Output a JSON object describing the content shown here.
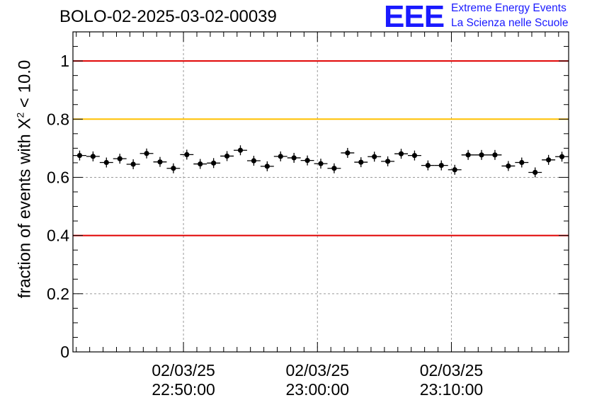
{
  "header": {
    "run_title": "BOLO-02-2025-03-02-00039",
    "logo_letters": "EEE",
    "logo_line1": "Extreme Energy Events",
    "logo_line2": "La Scienza nelle Scuole"
  },
  "colors": {
    "upper_limit": "#e00000",
    "lower_limit": "#e00000",
    "target": "#ffc000",
    "logo": "#1a1aff",
    "markers": "#000000"
  },
  "chart_data": {
    "type": "scatter",
    "ylabel": {
      "prefix": "fraction of events with ",
      "symbol": "X",
      "superscript": "2",
      "suffix": " < 10.0"
    },
    "ylim": [
      0,
      1.1
    ],
    "yticks": [
      0,
      0.2,
      0.4,
      0.6,
      0.8,
      1
    ],
    "ytick_labels": [
      "0",
      "0.2",
      "0.4",
      "0.6",
      "0.8",
      "1"
    ],
    "xlim": [
      0,
      37
    ],
    "xticks": [
      8.25,
      18.25,
      28.25
    ],
    "xtick_labels": [
      {
        "date": "02/03/25",
        "time": "22:50:00"
      },
      {
        "date": "02/03/25",
        "time": "23:00:00"
      },
      {
        "date": "02/03/25",
        "time": "23:10:00"
      }
    ],
    "grid": true,
    "reference_lines": [
      {
        "y": 1.0,
        "color": "#e00000"
      },
      {
        "y": 0.8,
        "color": "#ffc000"
      },
      {
        "y": 0.4,
        "color": "#e00000"
      }
    ],
    "x": [
      0.5,
      1.5,
      2.5,
      3.5,
      4.5,
      5.5,
      6.5,
      7.5,
      8.5,
      9.5,
      10.5,
      11.5,
      12.5,
      13.5,
      14.5,
      15.5,
      16.5,
      17.5,
      18.5,
      19.5,
      20.5,
      21.5,
      22.5,
      23.5,
      24.5,
      25.5,
      26.5,
      27.5,
      28.5,
      29.5,
      30.5,
      31.5,
      32.5,
      33.5,
      34.5,
      35.5,
      36.5
    ],
    "y": [
      0.675,
      0.672,
      0.651,
      0.664,
      0.645,
      0.682,
      0.653,
      0.631,
      0.678,
      0.646,
      0.649,
      0.673,
      0.693,
      0.657,
      0.638,
      0.672,
      0.667,
      0.658,
      0.647,
      0.631,
      0.684,
      0.652,
      0.671,
      0.655,
      0.681,
      0.675,
      0.641,
      0.641,
      0.626,
      0.677,
      0.677,
      0.677,
      0.639,
      0.651,
      0.617,
      0.66,
      0.671
    ]
  }
}
